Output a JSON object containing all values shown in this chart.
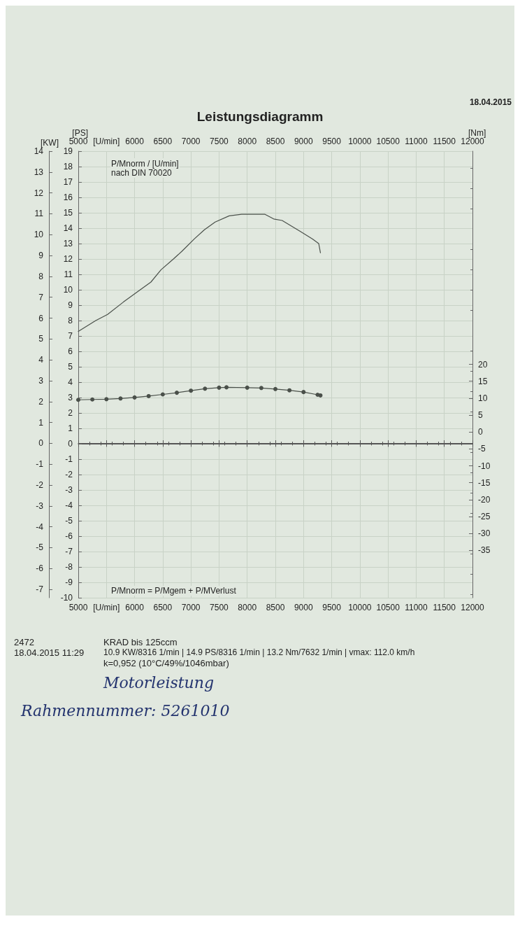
{
  "chart_data": {
    "type": "line",
    "title": "Leistungsdiagramm",
    "ylabel": "[PS]",
    "y2label": "[KW]",
    "y3label": "[Nm]",
    "xlim": [
      5000,
      12000
    ],
    "xticks": [
      5000,
      {
        "value": 5500,
        "label": "[U/min]"
      },
      6000,
      6500,
      7000,
      7500,
      8000,
      8500,
      9000,
      9500,
      10000,
      10500,
      11000,
      11500,
      12000
    ],
    "x2lim": [
      5000,
      12000
    ],
    "x2ticks": [
      5000,
      {
        "value": 5500,
        "label": "[U/min]"
      },
      6000,
      6500,
      7000,
      7500,
      8000,
      8500,
      9000,
      9500,
      10000,
      10500,
      11000,
      11500,
      12000
    ],
    "ylim": [
      -10,
      19
    ],
    "yticks": [
      -10,
      -9,
      -8,
      -7,
      -6,
      -5,
      -4,
      -3,
      -2,
      -1,
      0,
      1,
      2,
      3,
      4,
      5,
      6,
      7,
      8,
      9,
      10,
      11,
      12,
      13,
      14,
      15,
      16,
      17,
      18,
      19
    ],
    "y2lim": [
      -7.4,
      14
    ],
    "y2ticks": [
      -7,
      -6,
      -5,
      -4,
      -3,
      -2,
      -1,
      0,
      1,
      2,
      3,
      4,
      5,
      6,
      7,
      8,
      9,
      10,
      11,
      12,
      13,
      14
    ],
    "y3lim": [
      -49,
      83
    ],
    "y3ticks": [
      -35,
      -30,
      -25,
      -20,
      -15,
      -10,
      -5,
      0,
      5,
      10,
      15,
      20
    ],
    "grid": true,
    "line_style": "solid",
    "series": [
      {
        "color": "#4a504a",
        "marker": "none",
        "x": [
          5000,
          5310,
          5520,
          5800,
          6100,
          6290,
          6470,
          6690,
          6840,
          7060,
          7240,
          7430,
          7680,
          7900,
          8316,
          8470,
          8620,
          8940,
          9160,
          9270,
          9300
        ],
        "values": [
          7.3,
          8.0,
          8.4,
          9.2,
          10.0,
          10.5,
          11.3,
          12.0,
          12.5,
          13.3,
          13.9,
          14.4,
          14.8,
          14.9,
          14.9,
          14.6,
          14.5,
          13.8,
          13.3,
          13.0,
          12.4
        ]
      },
      {
        "color": "#4a504a",
        "marker": "circle",
        "axis": "y3",
        "x": [
          5000,
          5250,
          5500,
          5750,
          6000,
          6250,
          6500,
          6750,
          7000,
          7250,
          7500,
          7632,
          8000,
          8250,
          8500,
          8750,
          9000,
          9250,
          9300
        ],
        "values": [
          9.5,
          9.6,
          9.7,
          9.9,
          10.2,
          10.6,
          11.1,
          11.6,
          12.2,
          12.8,
          13.1,
          13.2,
          13.1,
          13.0,
          12.7,
          12.3,
          11.8,
          11.0,
          10.8
        ]
      }
    ],
    "annotations": [
      "18.04.2015",
      "P/Mnorm / [U/min]\nnach DIN 70020",
      "P/Mnorm = P/Mgem + P/MVerlust",
      "2472",
      "18.04.2015  11:29",
      "KRAD bis   125ccm",
      "10.9 KW/8316 1/min  |  14.9 PS/8316 1/min  |  13.2 Nm/7632 1/min | vmax: 112.0 km/h",
      "k=0,952 (10°C/49%/1046mbar)",
      "Motorleistung",
      "Rahmennummer: 5261010"
    ]
  }
}
